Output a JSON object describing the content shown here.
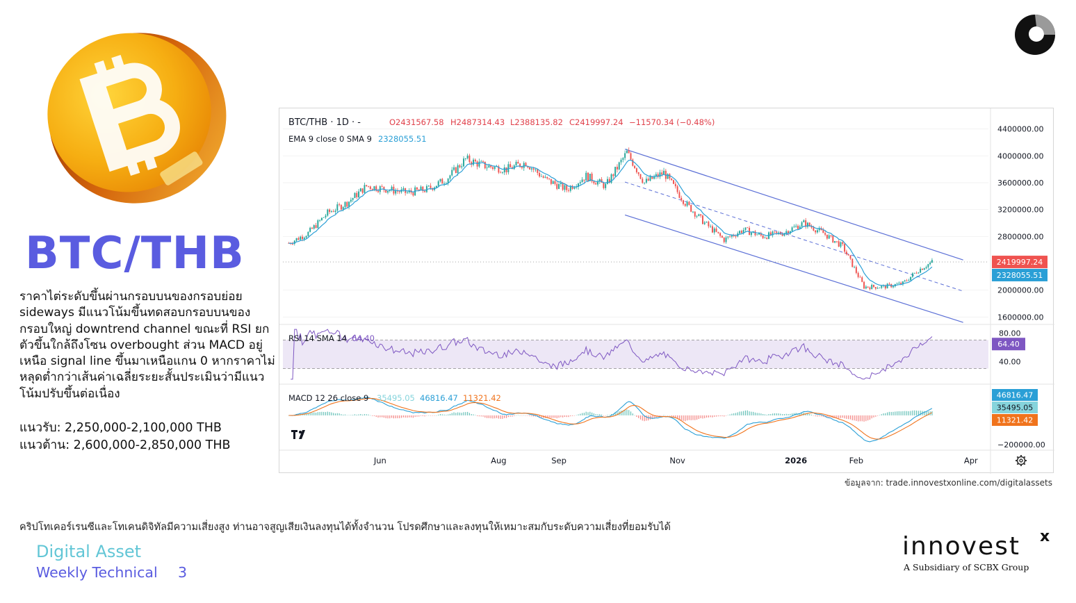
{
  "page": {
    "pair_title": "BTC/THB",
    "analysis_text": "ราคาไต่ระดับขึ้นผ่านกรอบบนของกรอบย่อย sideways มีแนวโน้มขึ้นทดสอบกรอบบนของกรอบใหญ่ downtrend channel ขณะที่ RSI ยกตัวขึ้นใกล้ถึงโซน overbought ส่วน MACD อยู่เหนือ signal line ขึ้นมาเหนือแกน 0 หากราคาไม่หลุดต่ำกว่าเส้นค่าเฉลี่ยระยะสั้นประเมินว่ามีแนวโน้มปรับขึ้นต่อเนื่อง",
    "support": "แนวรับ: 2,250,000-2,100,000 THB",
    "resistance": "แนวต้าน: 2,600,000-2,850,000 THB",
    "source": "ข้อมูลจาก: trade.innovestxonline.com/digitalassets",
    "disclaimer": "คริปโทเคอร์เรนซีและโทเคนดิจิทัลมีความเสี่ยงสูง ท่านอาจสูญเสียเงินลงทุนได้ทั้งจำนวน โปรดศึกษาและลงทุนให้เหมาะสมกับระดับความเสี่ยงที่ยอมรับได้",
    "footer_title": "Digital Asset",
    "footer_subtitle": "Weekly Technical",
    "page_number": "3",
    "logo_word": "innovest",
    "logo_x": "x",
    "logo_tagline": "A Subsidiary of SCBX Group",
    "coin_icon": "bitcoin-coin-icon",
    "colors": {
      "brand_purple": "#5a5ce0",
      "brand_teal": "#62c6d6",
      "candle_up": "#26a69a",
      "candle_down": "#ef5350",
      "channel": "#5b6fd6"
    }
  },
  "chart_data": {
    "type": "line",
    "symbol": "BTC/THB",
    "interval": "1D",
    "ohlc_header": {
      "symbol_label": "BTC/THB · 1D · -",
      "open": "O2431567.58",
      "high": "H2487314.43",
      "low": "L2388135.82",
      "close": "C2419997.24",
      "change": "−11570.34 (−0.48%)"
    },
    "ema_label": "EMA 9 close 0 SMA 9",
    "ema_value": "2328055.51",
    "x_ticks": [
      "Jun",
      "Aug",
      "Sep",
      "Nov",
      "2026",
      "Feb",
      "Apr"
    ],
    "y_ticks": [
      "4400000.00",
      "4000000.00",
      "3600000.00",
      "3200000.00",
      "2800000.00",
      "2000000.00",
      "1600000.00"
    ],
    "ylim": [
      1500000,
      4500000
    ],
    "price_tags": {
      "close": "2419997.24",
      "ema": "2328055.51"
    },
    "series": [
      {
        "name": "BTC/THB",
        "x": [
          "2025-04-15",
          "2025-04-25",
          "2025-05-05",
          "2025-05-15",
          "2025-05-25",
          "2025-06-05",
          "2025-06-15",
          "2025-06-25",
          "2025-07-05",
          "2025-07-15",
          "2025-07-25",
          "2025-08-05",
          "2025-08-15",
          "2025-08-25",
          "2025-09-05",
          "2025-09-15",
          "2025-09-25",
          "2025-10-06",
          "2025-10-15",
          "2025-10-25",
          "2025-11-05",
          "2025-11-15",
          "2025-11-25",
          "2025-12-05",
          "2025-12-15",
          "2025-12-25",
          "2026-01-05",
          "2026-01-15",
          "2026-01-25",
          "2026-02-05",
          "2026-02-15",
          "2026-02-25",
          "2026-03-05",
          "2026-03-12"
        ],
        "values": [
          2700000,
          2850000,
          3150000,
          3300000,
          3550000,
          3500000,
          3450000,
          3500000,
          3650000,
          3950000,
          3850000,
          3800000,
          3900000,
          3650000,
          3500000,
          3700000,
          3550000,
          4050000,
          3600000,
          3750000,
          3300000,
          3000000,
          2750000,
          2900000,
          2800000,
          2850000,
          3000000,
          2850000,
          2650000,
          2050000,
          2050000,
          2100000,
          2300000,
          2420000
        ]
      }
    ],
    "rsi": {
      "label": "RSI 14 SMA 14",
      "value": "64.40",
      "ticks": [
        "80.00",
        "40.00"
      ],
      "band": [
        30,
        70
      ]
    },
    "macd": {
      "label": "MACD 12 26 close 9",
      "values": [
        "35495.05",
        "46816.47",
        "11321.42"
      ],
      "tags": [
        "46816.47",
        "35495.05",
        "11321.42"
      ],
      "ticks": [
        "−200000.00"
      ]
    }
  }
}
